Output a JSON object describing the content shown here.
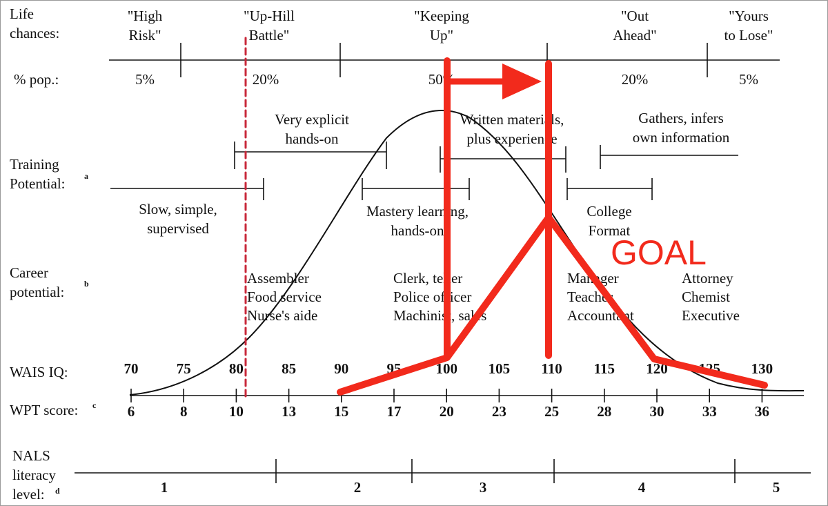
{
  "row_labels": [
    {
      "lines": [
        "Life",
        "chances:"
      ]
    },
    {
      "lines": [
        "% pop.:"
      ]
    },
    {
      "lines": [
        "Training",
        "Potential:"
      ],
      "note": "a"
    },
    {
      "lines": [
        "Career",
        "potential:"
      ],
      "note": "b"
    },
    {
      "lines": [
        "WAIS IQ:"
      ]
    },
    {
      "lines": [
        "WPT score:"
      ],
      "note": "c"
    },
    {
      "lines": [
        "NALS",
        "literacy",
        "level:"
      ],
      "note": "d"
    }
  ],
  "life_chances": [
    {
      "lines": [
        "\"High",
        "Risk\""
      ],
      "pop": "5%"
    },
    {
      "lines": [
        "\"Up-Hill",
        "Battle\""
      ],
      "pop": "20%"
    },
    {
      "lines": [
        "\"Keeping",
        "Up\""
      ],
      "pop": "50%"
    },
    {
      "lines": [
        "\"Out",
        "Ahead\""
      ],
      "pop": "20%"
    },
    {
      "lines": [
        "\"Yours",
        "to Lose\""
      ],
      "pop": "5%"
    }
  ],
  "training_upper": [
    [
      "Very explicit",
      "hands-on"
    ],
    [
      "Written materials,",
      "plus experience"
    ],
    [
      "Gathers, infers",
      "own information"
    ]
  ],
  "training_lower": [
    [
      "Slow, simple,",
      "supervised"
    ],
    [
      "Mastery learning,",
      "hands-on"
    ],
    [
      "College",
      "Format"
    ]
  ],
  "careers": [
    [
      "Assembler",
      "Food service",
      "Nurse's aide"
    ],
    [
      "Clerk, teller",
      "Police officer",
      "Machinist, sales"
    ],
    [
      "Manager",
      "Teacher",
      "Accountant"
    ],
    [
      "Attorney",
      "Chemist",
      "Executive"
    ]
  ],
  "wais_iq": [
    70,
    75,
    80,
    85,
    90,
    95,
    100,
    105,
    110,
    115,
    120,
    125,
    130
  ],
  "wpt_score": [
    6,
    8,
    10,
    13,
    15,
    17,
    20,
    23,
    25,
    28,
    30,
    33,
    36
  ],
  "nals_levels": [
    1,
    2,
    3,
    4,
    5
  ],
  "annotation": "GOAL"
}
